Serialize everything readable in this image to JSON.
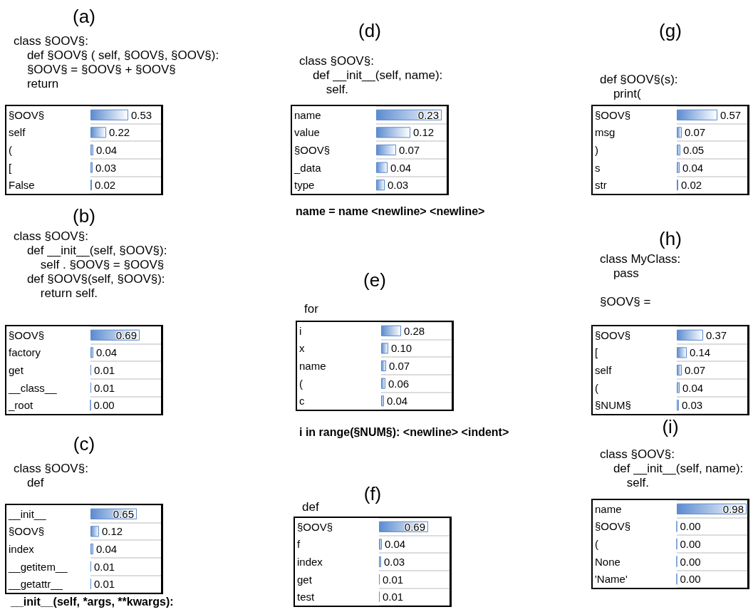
{
  "chart_data": [
    {
      "type": "bar",
      "orientation": "horizontal",
      "title": "(a)",
      "subtitle": "class §OOV§:\n    def §OOV§ ( self, §OOV§, §OOV§):\n    §OOV§ = §OOV§ + §OOV§\n    return",
      "categories": [
        "§OOV§",
        "self",
        "(",
        "[",
        "False"
      ],
      "values": [
        0.53,
        0.22,
        0.04,
        0.03,
        0.02
      ],
      "value_labels": [
        "0.53",
        "0.22",
        "0.04",
        "0.03",
        "0.02"
      ],
      "color": "#5b8bd0",
      "xlim": [
        0,
        1
      ],
      "tick_labels": "y",
      "grid": "y"
    },
    {
      "type": "bar",
      "orientation": "horizontal",
      "title": "(b)",
      "subtitle": "class §OOV§:\n    def __init__(self, §OOV§):\n        self . §OOV§ = §OOV§\n    def §OOV§(self, §OOV§):\n        return self.",
      "categories": [
        "§OOV§",
        "factory",
        "get",
        "__class__",
        "_root"
      ],
      "values": [
        0.69,
        0.04,
        0.01,
        0.01,
        0.0
      ],
      "value_labels": [
        "0.69",
        "0.04",
        "0.01",
        "0.01",
        "0.00"
      ],
      "color": "#5b8bd0",
      "xlim": [
        0,
        1
      ],
      "tick_labels": "y",
      "grid": "y"
    },
    {
      "type": "bar",
      "orientation": "horizontal",
      "title": "(c)",
      "subtitle": "class §OOV§:\n    def",
      "categories": [
        "__init__",
        "§OOV§",
        "index",
        "__getitem__",
        "__getattr__"
      ],
      "values": [
        0.65,
        0.12,
        0.04,
        0.01,
        0.01
      ],
      "value_labels": [
        "0.65",
        "0.12",
        "0.04",
        "0.01",
        "0.01"
      ],
      "color": "#5b8bd0",
      "xlim": [
        0,
        1
      ],
      "tick_labels": "y",
      "grid": "y",
      "annotations": [
        "__init__(self, *args, **kwargs):"
      ]
    },
    {
      "type": "bar",
      "orientation": "horizontal",
      "title": "(d)",
      "subtitle": "class §OOV§:\n    def __init__(self, name):\n        self.",
      "categories": [
        "name",
        "value",
        "§OOV§",
        "_data",
        "type"
      ],
      "values": [
        0.23,
        0.12,
        0.07,
        0.04,
        0.03
      ],
      "value_labels": [
        "0.23",
        "0.12",
        "0.07",
        "0.04",
        "0.03"
      ],
      "color": "#5b8bd0",
      "tick_labels": "y",
      "grid": "y",
      "annotations": [
        "name = name <newline> <newline>"
      ]
    },
    {
      "type": "bar",
      "orientation": "horizontal",
      "title": "(e)",
      "subtitle": "for",
      "categories": [
        "i",
        "x",
        "name",
        "(",
        "c"
      ],
      "values": [
        0.28,
        0.1,
        0.07,
        0.06,
        0.04
      ],
      "value_labels": [
        "0.28",
        "0.10",
        "0.07",
        "0.06",
        "0.04"
      ],
      "color": "#5b8bd0",
      "xlim": [
        0,
        1
      ],
      "tick_labels": "y",
      "grid": "y",
      "annotations": [
        "i in range(§NUM§): <newline> <indent>"
      ]
    },
    {
      "type": "bar",
      "orientation": "horizontal",
      "title": "(f)",
      "subtitle": "def",
      "categories": [
        "§OOV§",
        "f",
        "index",
        "get",
        "test"
      ],
      "values": [
        0.69,
        0.04,
        0.03,
        0.01,
        0.01
      ],
      "value_labels": [
        "0.69",
        "0.04",
        "0.03",
        "0.01",
        "0.01"
      ],
      "color": "#5b8bd0",
      "xlim": [
        0,
        1
      ],
      "tick_labels": "y",
      "grid": "y"
    },
    {
      "type": "bar",
      "orientation": "horizontal",
      "title": "(g)",
      "subtitle": "def §OOV§(s):\n    print(",
      "categories": [
        "§OOV§",
        "msg",
        ")",
        "s",
        "str"
      ],
      "values": [
        0.57,
        0.07,
        0.05,
        0.04,
        0.02
      ],
      "value_labels": [
        "0.57",
        "0.07",
        "0.05",
        "0.04",
        "0.02"
      ],
      "color": "#5b8bd0",
      "xlim": [
        0,
        1
      ],
      "tick_labels": "y",
      "grid": "y"
    },
    {
      "type": "bar",
      "orientation": "horizontal",
      "title": "(h)",
      "subtitle": "class MyClass:\n    pass\n\n§OOV§ =",
      "categories": [
        "§OOV§",
        "[",
        "self",
        "(",
        "§NUM§"
      ],
      "values": [
        0.37,
        0.14,
        0.07,
        0.04,
        0.03
      ],
      "value_labels": [
        "0.37",
        "0.14",
        "0.07",
        "0.04",
        "0.03"
      ],
      "color": "#5b8bd0",
      "xlim": [
        0,
        1
      ],
      "tick_labels": "y",
      "grid": "y"
    },
    {
      "type": "bar",
      "orientation": "horizontal",
      "title": "(i)",
      "subtitle": "class §OOV§:\n    def __init__(self, name):\n        self.",
      "categories": [
        "name",
        "§OOV§",
        "(",
        "None",
        "'Name'"
      ],
      "values": [
        0.98,
        0.0,
        0.0,
        0.0,
        0.0
      ],
      "value_labels": [
        "0.98",
        "0.00",
        "0.00",
        "0.00",
        "0.00"
      ],
      "color": "#5b8bd0",
      "xlim": [
        0,
        1
      ],
      "tick_labels": "y",
      "grid": "y"
    }
  ]
}
